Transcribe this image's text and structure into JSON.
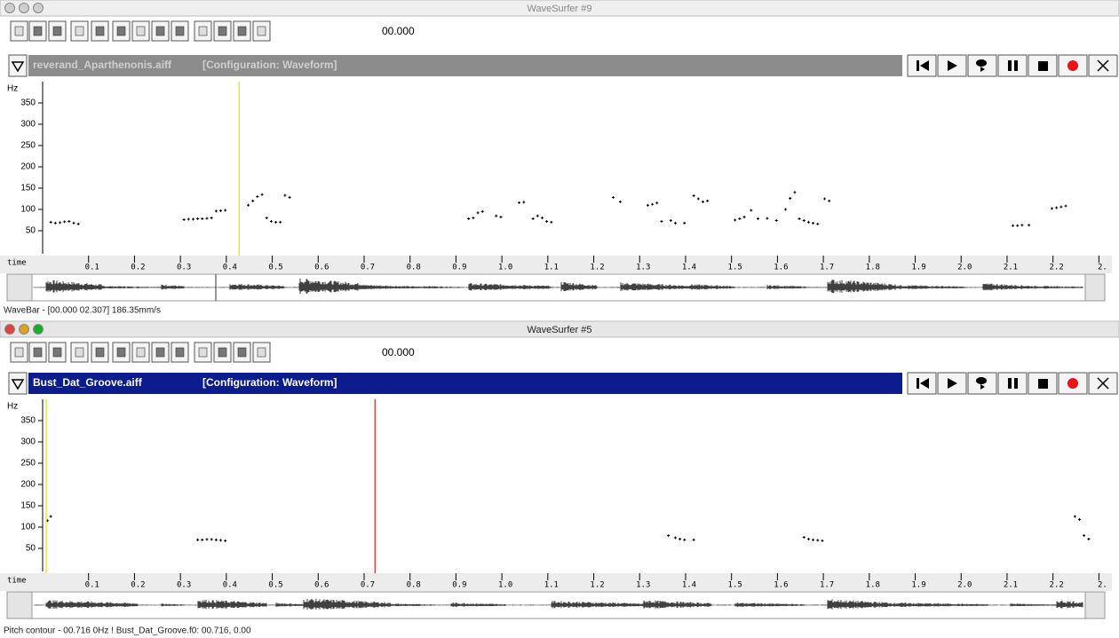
{
  "windows": [
    {
      "title": "WaveSurfer #9",
      "active": false,
      "time_display": "00.000",
      "file": "reverand_Aparthenonis.aiff",
      "configuration": "[Configuration: Waveform]",
      "pitch": {
        "y_label": "Hz",
        "ylim": [
          0,
          400
        ],
        "yticks": [
          50,
          100,
          150,
          200,
          250,
          300,
          350
        ],
        "t": [
          0.01,
          0.02,
          0.03,
          0.04,
          0.05,
          0.06,
          0.07,
          0.3,
          0.31,
          0.32,
          0.33,
          0.34,
          0.35,
          0.36,
          0.37,
          0.38,
          0.39,
          0.44,
          0.45,
          0.46,
          0.47,
          0.48,
          0.49,
          0.5,
          0.51,
          0.52,
          0.53,
          0.92,
          0.93,
          0.94,
          0.95,
          0.98,
          0.99,
          1.03,
          1.04,
          1.06,
          1.07,
          1.08,
          1.09,
          1.1,
          1.235,
          1.25,
          1.31,
          1.32,
          1.33,
          1.34,
          1.36,
          1.37,
          1.39,
          1.41,
          1.42,
          1.43,
          1.44,
          1.5,
          1.51,
          1.52,
          1.535,
          1.55,
          1.57,
          1.59,
          1.61,
          1.62,
          1.63,
          1.64,
          1.65,
          1.66,
          1.67,
          1.68,
          1.695,
          1.705,
          2.105,
          2.115,
          2.125,
          2.14,
          2.19,
          2.2,
          2.21,
          2.22
        ],
        "hz": [
          70,
          68,
          69,
          71,
          72,
          68,
          66,
          76,
          77,
          77,
          78,
          78,
          79,
          80,
          96,
          97,
          98,
          110,
          120,
          130,
          135,
          80,
          72,
          70,
          70,
          133,
          128,
          78,
          80,
          92,
          95,
          85,
          82,
          116,
          117,
          78,
          85,
          80,
          72,
          70,
          128,
          118,
          110,
          112,
          115,
          72,
          74,
          68,
          68,
          132,
          125,
          118,
          120,
          75,
          78,
          82,
          98,
          78,
          79,
          74,
          100,
          126,
          140,
          78,
          74,
          70,
          68,
          66,
          125,
          120,
          62,
          62,
          63,
          63,
          102,
          104,
          106,
          108
        ]
      },
      "cursor": 0.42,
      "ruler": {
        "label": "time",
        "xlim": [
          0,
          2.307
        ],
        "xticks": [
          0.1,
          0.2,
          0.3,
          0.4,
          0.5,
          0.6,
          0.7,
          0.8,
          0.9,
          {
            "value": 1,
            "label": "1.0"
          },
          1.1,
          1.2,
          1.3,
          1.4,
          1.5,
          1.6,
          1.7,
          1.8,
          1.9,
          {
            "value": 2,
            "label": "2.0"
          },
          2.1,
          2.2,
          {
            "value": 2.3,
            "label": "2."
          }
        ]
      },
      "status": "WaveBar - [00.000 02.307] 186.35mm/s"
    },
    {
      "title": "WaveSurfer #5",
      "active": true,
      "time_display": "00.000",
      "file": "Bust_Dat_Groove.aiff",
      "configuration": "[Configuration: Waveform]",
      "pitch": {
        "y_label": "Hz",
        "ylim": [
          0,
          400
        ],
        "yticks": [
          50,
          100,
          150,
          200,
          250,
          300,
          350
        ],
        "t": [
          0.003,
          0.01,
          0.33,
          0.34,
          0.35,
          0.36,
          0.37,
          0.38,
          0.39,
          1.355,
          1.37,
          1.38,
          1.39,
          1.41,
          1.65,
          1.66,
          1.67,
          1.68,
          1.69,
          2.24,
          2.25,
          2.26,
          2.27
        ],
        "hz": [
          115,
          125,
          70,
          70,
          71,
          71,
          70,
          69,
          68,
          80,
          75,
          72,
          70,
          70,
          76,
          72,
          70,
          69,
          68,
          125,
          118,
          80,
          72
        ]
      },
      "cursor": 0.0,
      "marker": 0.716,
      "ruler": {
        "label": "time",
        "xlim": [
          0,
          2.307
        ],
        "xticks": [
          0.1,
          0.2,
          0.3,
          0.4,
          0.5,
          0.6,
          0.7,
          0.8,
          0.9,
          {
            "value": 1,
            "label": "1.0"
          },
          1.1,
          1.2,
          1.3,
          1.4,
          1.5,
          1.6,
          1.7,
          1.8,
          1.9,
          {
            "value": 2,
            "label": "2.0"
          },
          2.1,
          2.2,
          {
            "value": 2.3,
            "label": "2."
          }
        ]
      },
      "status": "Pitch contour - 00.716 0Hz ! Bust_Dat_Groove.f0: 00.716, 0.00"
    }
  ]
}
